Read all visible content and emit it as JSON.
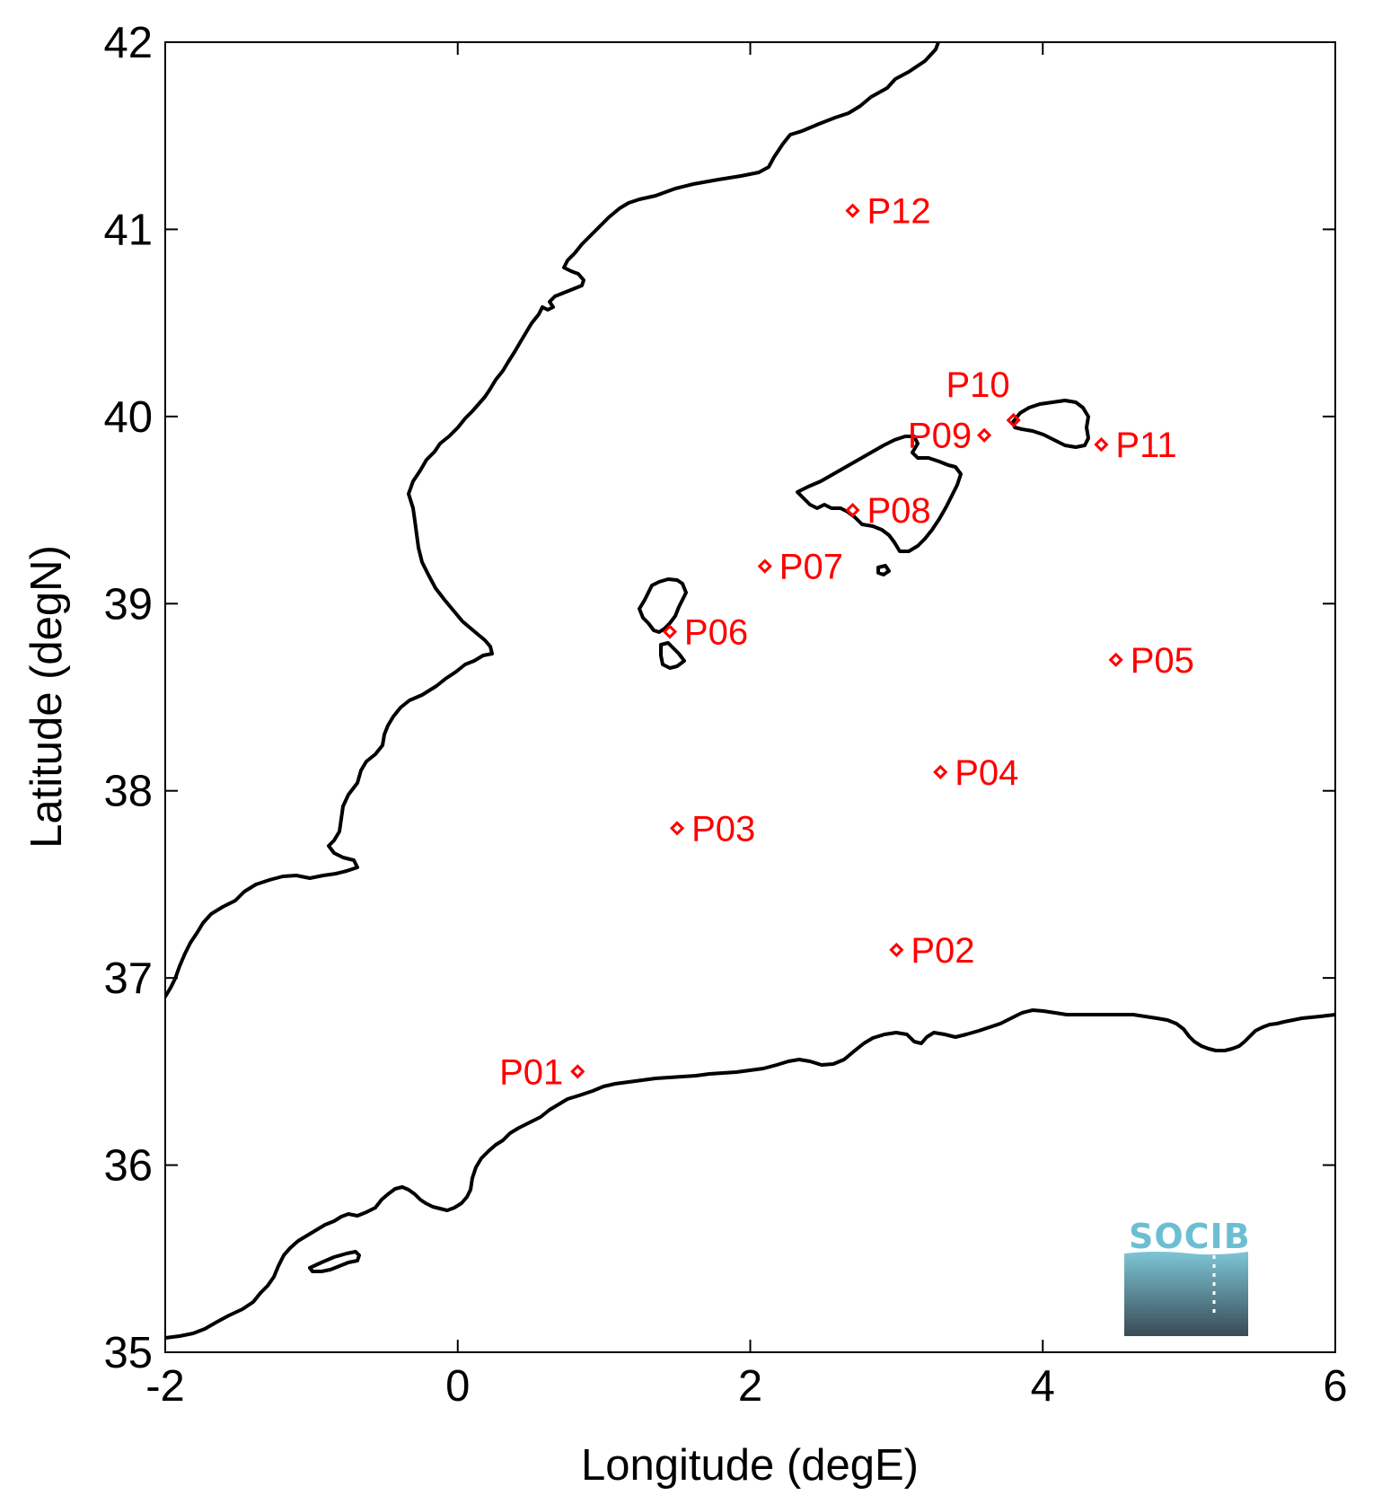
{
  "chart_data": {
    "type": "scatter",
    "xlabel": "Longitude (degE)",
    "ylabel": "Latitude (degN)",
    "xlim": [
      -2,
      6
    ],
    "ylim": [
      35,
      42
    ],
    "xticks": [
      -2,
      0,
      2,
      4,
      6
    ],
    "yticks": [
      35,
      36,
      37,
      38,
      39,
      40,
      41,
      42
    ],
    "grid": false,
    "marker": "diamond",
    "series": [
      {
        "color": "#ff0000",
        "points": [
          {
            "label": "P01",
            "lon": 0.82,
            "lat": 36.5
          },
          {
            "label": "P02",
            "lon": 3.0,
            "lat": 37.15
          },
          {
            "label": "P03",
            "lon": 1.5,
            "lat": 37.8
          },
          {
            "label": "P04",
            "lon": 3.3,
            "lat": 38.1
          },
          {
            "label": "P05",
            "lon": 4.5,
            "lat": 38.7
          },
          {
            "label": "P06",
            "lon": 1.45,
            "lat": 38.85
          },
          {
            "label": "P07",
            "lon": 2.1,
            "lat": 39.2
          },
          {
            "label": "P08",
            "lon": 2.7,
            "lat": 39.5
          },
          {
            "label": "P09",
            "lon": 3.6,
            "lat": 39.9
          },
          {
            "label": "P10",
            "lon": 3.8,
            "lat": 39.98
          },
          {
            "label": "P11",
            "lon": 4.4,
            "lat": 39.85
          },
          {
            "label": "P12",
            "lon": 2.7,
            "lat": 41.1
          }
        ]
      }
    ]
  },
  "logo": {
    "text": "SOCIB",
    "text_color": "#6cbfd3",
    "gradient_top": "#7cc6d6",
    "gradient_bottom": "#3a4a55"
  },
  "colors": {
    "coastline": "#000000",
    "markers": "#ff0000",
    "axes": "#000000"
  }
}
